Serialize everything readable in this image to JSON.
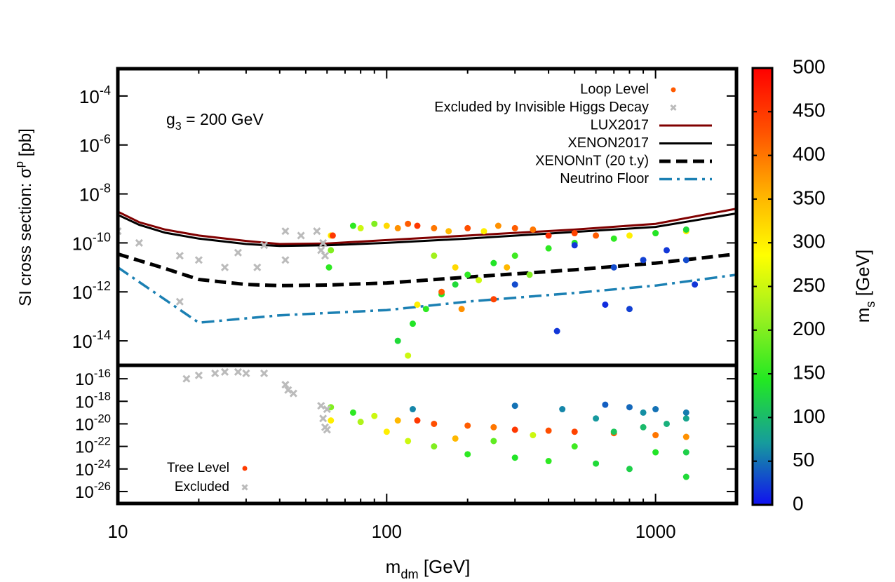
{
  "chart_data": [
    {
      "type": "scatter",
      "annotation": "g3 = 200 GeV",
      "xscale": "log",
      "yscale": "log",
      "xlim": [
        10,
        2000
      ],
      "ylim": [
        1e-15,
        0.0013
      ],
      "ylabel": "SI cross section: σp [pb]",
      "yticks": [
        {
          "value": 0.0001,
          "label": "10-4"
        },
        {
          "value": 1e-06,
          "label": "10-6"
        },
        {
          "value": 1e-08,
          "label": "10-8"
        },
        {
          "value": 1e-10,
          "label": "10-10"
        },
        {
          "value": 1e-12,
          "label": "10-12"
        },
        {
          "value": 1e-14,
          "label": "10-14"
        }
      ],
      "legend": "upper right",
      "series": [
        {
          "name": "Loop Level",
          "color": "#ff5a00",
          "marker": "dot",
          "x": [
            62,
            62,
            61,
            63,
            75,
            80,
            90,
            100,
            110,
            120,
            130,
            150,
            170,
            200,
            230,
            260,
            300,
            350,
            400,
            500,
            600,
            800,
            1000,
            1300,
            110,
            125,
            140,
            160,
            180,
            200,
            250,
            300,
            400,
            500,
            700,
            1000,
            1300,
            500,
            700,
            900,
            1100,
            1300,
            430,
            650,
            800,
            1400,
            300,
            130,
            160,
            190,
            220,
            280,
            120,
            150,
            250,
            340,
            180
          ],
          "values": [
            2e-10,
            5e-11,
            1e-11,
            2e-10,
            5e-10,
            4e-10,
            6e-10,
            5e-10,
            4e-10,
            6e-10,
            5e-10,
            4e-10,
            3e-10,
            4e-10,
            3e-10,
            5e-10,
            4e-10,
            3.5e-10,
            2e-10,
            2.5e-10,
            2e-10,
            2e-10,
            2.5e-10,
            3e-10,
            1e-14,
            5e-14,
            2e-13,
            8e-13,
            2e-12,
            5e-12,
            1.5e-11,
            3e-11,
            6e-11,
            1e-10,
            1.5e-10,
            2.5e-10,
            3.5e-10,
            8e-11,
            1e-11,
            2e-11,
            5e-11,
            2e-11,
            2.5e-14,
            3e-13,
            2e-13,
            2e-12,
            2e-12,
            3e-13,
            1e-12,
            2e-13,
            3e-12,
            1e-11,
            2.5e-15,
            3e-11,
            5e-13,
            5e-12,
            1e-11
          ],
          "c": [
            300,
            200,
            150,
            450,
            150,
            250,
            200,
            320,
            380,
            420,
            450,
            400,
            350,
            430,
            300,
            380,
            420,
            400,
            460,
            440,
            420,
            300,
            350,
            300,
            130,
            140,
            150,
            140,
            130,
            150,
            140,
            160,
            150,
            140,
            150,
            140,
            130,
            20,
            30,
            25,
            20,
            30,
            20,
            15,
            25,
            20,
            30,
            300,
            420,
            380,
            250,
            350,
            250,
            220,
            440,
            200,
            320
          ]
        },
        {
          "name": "Excluded by Invisible Higgs Decay",
          "color": "#bbbbbb",
          "marker": "x",
          "x": [
            10,
            12,
            17,
            20,
            25,
            28,
            33,
            35,
            42,
            42,
            48,
            55,
            57,
            58,
            59,
            17
          ],
          "values": [
            3e-10,
            1e-10,
            3e-11,
            2e-11,
            1e-11,
            4e-11,
            1e-11,
            8e-11,
            2e-11,
            3e-10,
            2e-10,
            3e-10,
            5e-11,
            1e-10,
            3e-11,
            4e-13
          ]
        },
        {
          "name": "LUX2017",
          "color": "#800000",
          "style": "solid",
          "x": [
            10,
            12,
            15,
            20,
            30,
            40,
            60,
            100,
            200,
            500,
            1000,
            2000
          ],
          "values": [
            1.9e-09,
            7e-10,
            3.5e-10,
            2e-10,
            1.2e-10,
            9e-11,
            9.5e-11,
            1.3e-10,
            2e-10,
            3.5e-10,
            6e-10,
            2.5e-09
          ]
        },
        {
          "name": "XENON2017",
          "color": "#000000",
          "style": "solid",
          "x": [
            10,
            12,
            15,
            20,
            30,
            40,
            60,
            100,
            200,
            500,
            1000,
            2000
          ],
          "values": [
            1.4e-09,
            5.5e-10,
            2.6e-10,
            1.5e-10,
            9e-11,
            7.5e-11,
            8e-11,
            1e-10,
            1.5e-10,
            2.8e-10,
            4.5e-10,
            1.6e-09
          ]
        },
        {
          "name": "XENONnT (20 t.y)",
          "color": "#000000",
          "style": "dashed",
          "x": [
            10,
            15,
            20,
            30,
            40,
            60,
            100,
            200,
            500,
            1000,
            2000
          ],
          "values": [
            3.5e-11,
            9e-12,
            3.2e-12,
            2e-12,
            1.8e-12,
            1.9e-12,
            2.3e-12,
            4e-12,
            8e-12,
            1.5e-11,
            3.5e-11
          ]
        },
        {
          "name": "Neutrino Floor",
          "color": "#1b80b3",
          "style": "dashdot",
          "x": [
            10,
            20,
            40,
            100,
            200,
            500,
            1000,
            2000
          ],
          "values": [
            1e-11,
            5.5e-14,
            1.1e-13,
            1.8e-13,
            4e-13,
            9e-13,
            1.8e-12,
            5e-12
          ]
        }
      ],
      "colorbar": {
        "label": "ms [GeV]",
        "lim": [
          0,
          500
        ],
        "ticks": [
          0,
          50,
          100,
          150,
          200,
          250,
          300,
          350,
          400,
          450,
          500
        ],
        "colors": [
          "#1010f0",
          "#169c9c",
          "#22e822",
          "#99f020",
          "#ffff00",
          "#ffb000",
          "#ff5000",
          "#ff0000"
        ]
      }
    },
    {
      "type": "scatter",
      "xscale": "log",
      "yscale": "log",
      "xlim": [
        10,
        2000
      ],
      "ylim": [
        8.7e-28,
        1.55e-15
      ],
      "xlabel": "mdm [GeV]",
      "xticks": [
        10,
        100,
        1000
      ],
      "xminorticks": [
        20,
        30,
        40,
        50,
        60,
        70,
        80,
        90,
        200,
        300,
        400,
        500,
        600,
        700,
        800,
        900,
        2000
      ],
      "yticks": [
        {
          "value": 1e-16,
          "label": "10-16"
        },
        {
          "value": 1e-18,
          "label": "10-18"
        },
        {
          "value": 1e-20,
          "label": "10-20"
        },
        {
          "value": 1e-22,
          "label": "10-22"
        },
        {
          "value": 1e-24,
          "label": "10-24"
        },
        {
          "value": 1e-26,
          "label": "10-26"
        }
      ],
      "legend": "lower left",
      "series": [
        {
          "name": "Tree Level",
          "color": "#ff3c00",
          "marker": "dot",
          "x": [
            62,
            62,
            75,
            90,
            110,
            130,
            150,
            200,
            250,
            300,
            400,
            500,
            700,
            1000,
            1300,
            120,
            150,
            200,
            250,
            300,
            400,
            500,
            600,
            800,
            1000,
            1300,
            1300,
            700,
            900,
            1100,
            1300,
            125,
            300,
            450,
            650,
            800,
            1000,
            1300,
            600,
            900,
            100,
            180,
            350,
            80
          ],
          "values": [
            3e-19,
            2e-20,
            1e-19,
            5e-20,
            2e-20,
            2e-20,
            1e-20,
            7e-21,
            5e-21,
            3e-21,
            2.5e-21,
            2e-21,
            1.5e-21,
            1e-21,
            7e-22,
            3e-22,
            1e-22,
            2e-23,
            3e-22,
            1e-23,
            5e-24,
            1e-22,
            3e-24,
            1e-24,
            3e-23,
            2e-25,
            3e-23,
            2e-21,
            5e-21,
            1e-20,
            3e-20,
            2e-19,
            4e-19,
            2e-19,
            5e-19,
            3e-19,
            2e-19,
            1e-19,
            3e-20,
            1e-19,
            2e-21,
            5e-22,
            1e-21,
            1.5e-20
          ],
          "c": [
            200,
            300,
            150,
            250,
            350,
            450,
            430,
            420,
            400,
            450,
            430,
            440,
            420,
            400,
            380,
            250,
            200,
            150,
            180,
            140,
            150,
            160,
            130,
            120,
            140,
            130,
            120,
            110,
            100,
            90,
            80,
            60,
            50,
            60,
            40,
            45,
            50,
            55,
            70,
            65,
            300,
            350,
            250,
            230
          ]
        },
        {
          "name": "Excluded",
          "color": "#bbbbbb",
          "marker": "x",
          "x": [
            18,
            20,
            23,
            25,
            28,
            30,
            35,
            42,
            43,
            45,
            57,
            58,
            59,
            60,
            60
          ],
          "values": [
            1e-16,
            2e-16,
            3e-16,
            4e-16,
            4e-16,
            3e-16,
            3e-16,
            3e-17,
            1e-17,
            5e-18,
            4e-19,
            3e-20,
            5e-21,
            2e-19,
            3e-21
          ]
        }
      ]
    }
  ]
}
